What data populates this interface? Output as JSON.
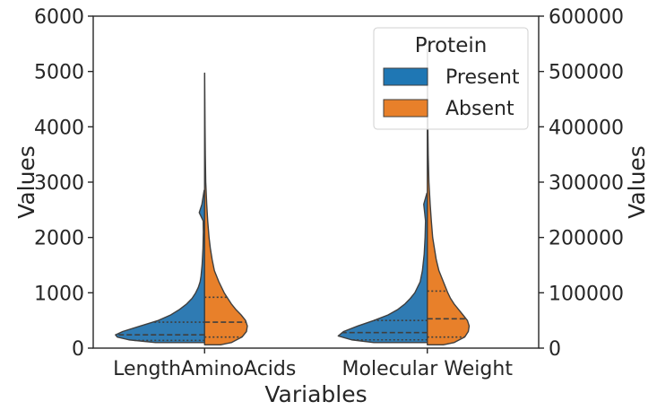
{
  "chart_data": {
    "type": "violin",
    "split": true,
    "categories": [
      "LengthAminoAcids",
      "Molecular Weight"
    ],
    "xlabel": "Variables",
    "ylabel": "Values",
    "ylabel_right": "Values",
    "ylim": [
      0,
      6000
    ],
    "ylim_right": [
      0,
      600000
    ],
    "yticks": [
      "0",
      "1000",
      "2000",
      "3000",
      "4000",
      "5000",
      "6000"
    ],
    "yticks_right": [
      "0",
      "100000",
      "200000",
      "300000",
      "400000",
      "500000",
      "600000"
    ],
    "legend": {
      "title": "Protein",
      "position": "top-right",
      "entries": [
        {
          "name": "Present",
          "color": "#1f77b4"
        },
        {
          "name": "Absent",
          "color": "#e8802a"
        }
      ]
    },
    "series": [
      {
        "name": "Present",
        "color": "#2f7bb3",
        "side": "left",
        "violins": [
          {
            "category": "LengthAminoAcids",
            "quartiles": [
              140,
              240,
              470
            ],
            "range": [
              100,
              2850
            ],
            "density": [
              [
                100,
                0.55
              ],
              [
                150,
                0.85
              ],
              [
                200,
                0.98
              ],
              [
                240,
                1.0
              ],
              [
                300,
                0.92
              ],
              [
                400,
                0.72
              ],
              [
                500,
                0.52
              ],
              [
                600,
                0.38
              ],
              [
                700,
                0.28
              ],
              [
                800,
                0.2
              ],
              [
                900,
                0.14
              ],
              [
                1000,
                0.1
              ],
              [
                1100,
                0.07
              ],
              [
                1200,
                0.05
              ],
              [
                1300,
                0.04
              ],
              [
                1500,
                0.028
              ],
              [
                1800,
                0.018
              ],
              [
                2100,
                0.014
              ],
              [
                2300,
                0.016
              ],
              [
                2450,
                0.06
              ],
              [
                2600,
                0.03
              ],
              [
                2850,
                0.005
              ]
            ]
          },
          {
            "category": "Molecular Weight",
            "quartiles": [
              150,
              280,
              500
            ],
            "range": [
              100,
              2800
            ],
            "density": [
              [
                100,
                0.6
              ],
              [
                150,
                0.85
              ],
              [
                220,
                1.0
              ],
              [
                300,
                0.94
              ],
              [
                400,
                0.78
              ],
              [
                500,
                0.6
              ],
              [
                600,
                0.44
              ],
              [
                700,
                0.33
              ],
              [
                800,
                0.25
              ],
              [
                900,
                0.19
              ],
              [
                1000,
                0.14
              ],
              [
                1200,
                0.08
              ],
              [
                1400,
                0.055
              ],
              [
                1700,
                0.035
              ],
              [
                2000,
                0.025
              ],
              [
                2300,
                0.02
              ],
              [
                2450,
                0.03
              ],
              [
                2600,
                0.04
              ],
              [
                2800,
                0.005
              ]
            ]
          }
        ]
      },
      {
        "name": "Absent",
        "color": "#e8802a",
        "side": "right",
        "violins": [
          {
            "category": "LengthAminoAcids",
            "quartiles": [
              200,
              470,
              920
            ],
            "range": [
              60,
              4970
            ],
            "density": [
              [
                60,
                0.18
              ],
              [
                100,
                0.3
              ],
              [
                200,
                0.42
              ],
              [
                300,
                0.47
              ],
              [
                400,
                0.48
              ],
              [
                500,
                0.46
              ],
              [
                600,
                0.41
              ],
              [
                700,
                0.35
              ],
              [
                800,
                0.3
              ],
              [
                900,
                0.26
              ],
              [
                1000,
                0.22
              ],
              [
                1200,
                0.16
              ],
              [
                1400,
                0.11
              ],
              [
                1600,
                0.085
              ],
              [
                1800,
                0.065
              ],
              [
                2000,
                0.05
              ],
              [
                2300,
                0.035
              ],
              [
                2600,
                0.024
              ],
              [
                3000,
                0.013
              ],
              [
                3500,
                0.008
              ],
              [
                4000,
                0.005
              ],
              [
                4500,
                0.003
              ],
              [
                4970,
                0.001
              ]
            ]
          },
          {
            "category": "Molecular Weight",
            "quartiles": [
              200,
              530,
              1030
            ],
            "range": [
              60,
              5400
            ],
            "density": [
              [
                60,
                0.18
              ],
              [
                100,
                0.3
              ],
              [
                200,
                0.42
              ],
              [
                300,
                0.46
              ],
              [
                400,
                0.47
              ],
              [
                500,
                0.45
              ],
              [
                600,
                0.4
              ],
              [
                700,
                0.35
              ],
              [
                800,
                0.3
              ],
              [
                900,
                0.26
              ],
              [
                1000,
                0.23
              ],
              [
                1200,
                0.18
              ],
              [
                1400,
                0.13
              ],
              [
                1600,
                0.1
              ],
              [
                1800,
                0.08
              ],
              [
                2000,
                0.06
              ],
              [
                2300,
                0.045
              ],
              [
                2600,
                0.032
              ],
              [
                3000,
                0.018
              ],
              [
                3500,
                0.01
              ],
              [
                4000,
                0.006
              ],
              [
                4600,
                0.003
              ],
              [
                5400,
                0.001
              ]
            ]
          }
        ]
      }
    ]
  }
}
